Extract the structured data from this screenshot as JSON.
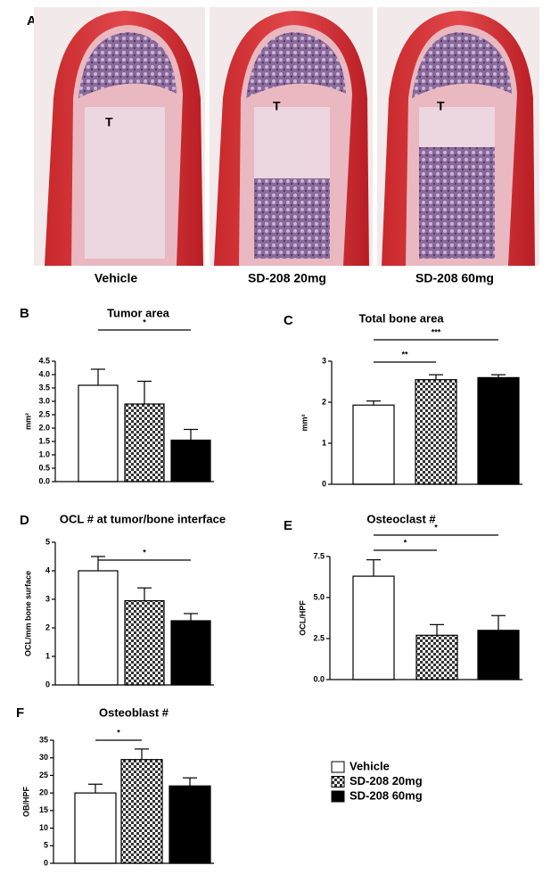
{
  "panel_a": {
    "panel": "A",
    "images": [
      {
        "marker": "T",
        "caption": "Vehicle"
      },
      {
        "marker": "T",
        "caption": "SD-208 20mg"
      },
      {
        "marker": "T",
        "caption": "SD-208 60mg"
      }
    ]
  },
  "legend": {
    "entries": [
      {
        "name": "Vehicle",
        "fill": "#ffffff"
      },
      {
        "name": "SD-208 20mg",
        "fill": "checker"
      },
      {
        "name": "SD-208 60mg",
        "fill": "#000000"
      }
    ]
  },
  "chart_data": [
    {
      "type": "bar",
      "panel": "B",
      "title": "Tumor area",
      "y_label": "mm²",
      "categories": [
        null,
        null,
        null
      ],
      "values": [
        3.6,
        2.9,
        1.55
      ],
      "errors": [
        0.6,
        0.85,
        0.4
      ],
      "ylim": [
        0,
        4.5
      ],
      "yticks": [
        {
          "value": 0,
          "label": "0.0"
        },
        {
          "value": 0.5,
          "label": "0.5"
        },
        {
          "value": 1,
          "label": "1.0"
        },
        {
          "value": 1.5,
          "label": "1.5"
        },
        {
          "value": 2,
          "label": "2.0"
        },
        {
          "value": 2.5,
          "label": "2.5"
        },
        {
          "value": 3,
          "label": "3.0"
        },
        {
          "value": 3.5,
          "label": "3.5"
        },
        {
          "value": 4,
          "label": "4.0"
        },
        {
          "value": 4.5,
          "label": "4.5"
        }
      ],
      "significance": [
        {
          "text": "*",
          "span": [
            0,
            2
          ]
        }
      ]
    },
    {
      "type": "bar",
      "panel": "C",
      "title": "Total bone area",
      "y_label": "mm²",
      "categories": [
        null,
        null,
        null
      ],
      "values": [
        1.93,
        2.55,
        2.6
      ],
      "errors": [
        0.1,
        0.12,
        0.07
      ],
      "ylim": [
        0,
        3
      ],
      "yticks": [
        0,
        1,
        2,
        3
      ],
      "significance": [
        {
          "text": "**",
          "span": [
            0,
            1
          ]
        },
        {
          "text": "***",
          "span": [
            0,
            2
          ]
        }
      ]
    },
    {
      "type": "bar",
      "panel": "D",
      "title": "OCL # at tumor/bone interface",
      "y_label": "OCL/mm bone surface",
      "categories": [
        null,
        null,
        null
      ],
      "values": [
        4.0,
        2.95,
        2.25
      ],
      "errors": [
        0.5,
        0.45,
        0.25
      ],
      "ylim": [
        0,
        5
      ],
      "yticks": [
        0,
        1,
        2,
        3,
        4,
        5
      ],
      "significance": [
        {
          "text": "*",
          "span": [
            0,
            2
          ]
        }
      ]
    },
    {
      "type": "bar",
      "panel": "E",
      "title": "Osteoclast #",
      "y_label": "OCL/HPF",
      "categories": [
        null,
        null,
        null
      ],
      "values": [
        6.3,
        2.7,
        3.0
      ],
      "errors": [
        1.0,
        0.65,
        0.9
      ],
      "ylim": [
        0,
        7.5
      ],
      "yticks": [
        {
          "value": 0,
          "label": "0.0"
        },
        {
          "value": 2.5,
          "label": "2.5"
        },
        {
          "value": 5,
          "label": "5.0"
        },
        {
          "value": 7.5,
          "label": "7.5"
        }
      ],
      "significance": [
        {
          "text": "*",
          "span": [
            0,
            1
          ]
        },
        {
          "text": "*",
          "span": [
            0,
            2
          ]
        }
      ]
    },
    {
      "type": "bar",
      "panel": "F",
      "title": "Osteoblast #",
      "y_label": "OB/HPF",
      "categories": [
        null,
        null,
        null
      ],
      "values": [
        20,
        29.5,
        22
      ],
      "errors": [
        2.5,
        3,
        2.3
      ],
      "ylim": [
        0,
        35
      ],
      "yticks": [
        0,
        5,
        10,
        15,
        20,
        25,
        30,
        35
      ],
      "significance": [
        {
          "text": "*",
          "span": [
            0,
            1
          ]
        }
      ]
    }
  ]
}
